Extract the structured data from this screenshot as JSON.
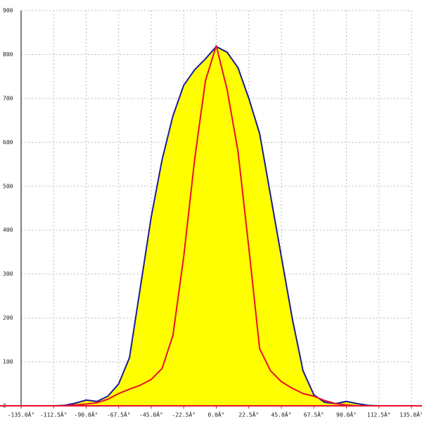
{
  "chart_data": {
    "type": "line",
    "x": [
      -135,
      -127.5,
      -120,
      -112.5,
      -105,
      -97.5,
      -90,
      -82.5,
      -75,
      -67.5,
      -60,
      -52.5,
      -45,
      -37.5,
      -30,
      -22.5,
      -15,
      -7.5,
      0,
      7.5,
      15,
      22.5,
      30,
      37.5,
      45,
      52.5,
      60,
      67.5,
      75,
      82.5,
      90,
      97.5,
      105,
      112.5,
      120,
      127.5,
      135
    ],
    "series": [
      {
        "color": "#1a1a9c",
        "fill": "#ffff00",
        "values": [
          0,
          0,
          0,
          0,
          1,
          6,
          13,
          10,
          22,
          50,
          110,
          270,
          430,
          560,
          660,
          730,
          765,
          790,
          818,
          805,
          770,
          700,
          620,
          480,
          340,
          200,
          80,
          25,
          8,
          5,
          10,
          5,
          1,
          0,
          0,
          0,
          0
        ]
      },
      {
        "color": "#e8102a",
        "values": [
          0,
          0,
          0,
          0,
          0,
          2,
          4,
          7,
          15,
          28,
          38,
          47,
          60,
          85,
          160,
          340,
          560,
          740,
          820,
          720,
          580,
          360,
          130,
          80,
          55,
          40,
          28,
          22,
          12,
          5,
          2,
          0,
          0,
          0,
          0,
          0,
          0
        ]
      }
    ],
    "xlim": [
      -135,
      135
    ],
    "ylim": [
      0,
      900
    ],
    "xticks": [
      {
        "value": -135,
        "label": "-135.0Â°"
      },
      {
        "value": -112.5,
        "label": "-112.5Â°"
      },
      {
        "value": -90,
        "label": "-90.0Â°"
      },
      {
        "value": -67.5,
        "label": "-67.5Â°"
      },
      {
        "value": -45,
        "label": "-45.0Â°"
      },
      {
        "value": -22.5,
        "label": "-22.5Â°"
      },
      {
        "value": 0,
        "label": "0.0Â°"
      },
      {
        "value": 22.5,
        "label": "22.5Â°"
      },
      {
        "value": 45,
        "label": "45.0Â°"
      },
      {
        "value": 67.5,
        "label": "67.5Â°"
      },
      {
        "value": 90,
        "label": "90.0Â°"
      },
      {
        "value": 112.5,
        "label": "112.5Â°"
      },
      {
        "value": 135,
        "label": "135.0Â°"
      }
    ],
    "yticks": [
      0,
      100,
      200,
      300,
      400,
      500,
      600,
      700,
      800,
      900
    ],
    "grid": true,
    "axis_color": "#e8102a"
  }
}
